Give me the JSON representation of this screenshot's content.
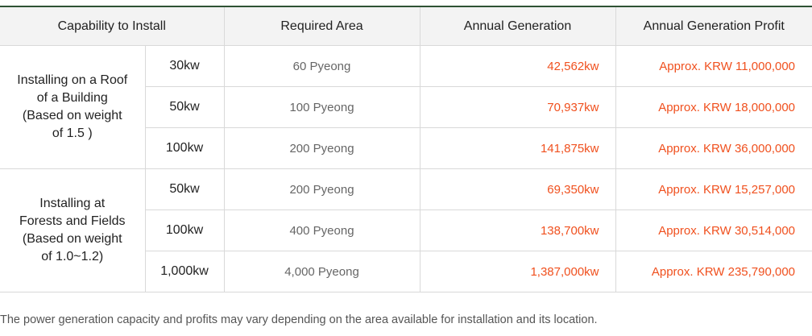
{
  "table": {
    "headers": [
      "Capability to Install",
      "Required Area",
      "Annual Generation",
      "Annual Generation Profit"
    ],
    "groups": [
      {
        "label_lines": [
          "Installing on a Roof",
          "of a Building",
          "(Based on weight",
          "of 1.5 )"
        ],
        "rows": [
          {
            "capacity": "30kw",
            "area": "60 Pyeong",
            "generation": "42,562kw",
            "profit": "Approx. KRW 11,000,000"
          },
          {
            "capacity": "50kw",
            "area": "100 Pyeong",
            "generation": "70,937kw",
            "profit": "Approx. KRW 18,000,000"
          },
          {
            "capacity": "100kw",
            "area": "200 Pyeong",
            "generation": "141,875kw",
            "profit": "Approx. KRW 36,000,000"
          }
        ]
      },
      {
        "label_lines": [
          "Installing at",
          "Forests and Fields",
          "(Based on weight",
          "of 1.0~1.2)"
        ],
        "rows": [
          {
            "capacity": "50kw",
            "area": "200 Pyeong",
            "generation": "69,350kw",
            "profit": "Approx. KRW 15,257,000"
          },
          {
            "capacity": "100kw",
            "area": "400 Pyeong",
            "generation": "138,700kw",
            "profit": "Approx. KRW 30,514,000"
          },
          {
            "capacity": "1,000kw",
            "area": "4,000 Pyeong",
            "generation": "1,387,000kw",
            "profit": "Approx. KRW 235,790,000"
          }
        ]
      }
    ]
  },
  "footnote": "The power generation capacity and profits may vary depending on the area available for installation and its location.",
  "colors": {
    "accent_value": "#f0501e",
    "header_bg": "#f3f3f3",
    "top_border": "#2f5234"
  }
}
